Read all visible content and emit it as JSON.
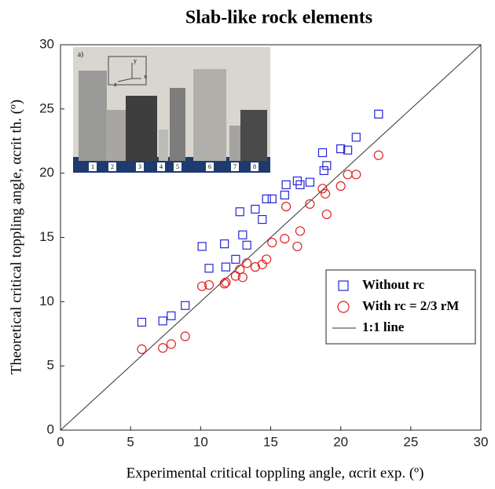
{
  "chart_data": {
    "type": "scatter",
    "title": "Slab-like rock elements",
    "x_label": "Experimental critical toppling angle, αcrit exp. (º)",
    "y_label": "Theoretical critical toppling angle, αcrit th. (º)",
    "xlim": [
      0,
      30
    ],
    "ylim": [
      0,
      30
    ],
    "xticks": [
      0,
      5,
      10,
      15,
      20,
      25,
      30
    ],
    "yticks": [
      0,
      5,
      10,
      15,
      20,
      25,
      30
    ],
    "grid": false,
    "legend_position": "lower right",
    "series": [
      {
        "name": "Without rc",
        "color": "#2626d9",
        "marker": "square",
        "x": [
          5.8,
          7.3,
          7.9,
          8.9,
          10.1,
          10.6,
          11.7,
          11.8,
          12.5,
          12.8,
          13.0,
          13.3,
          13.9,
          14.4,
          14.7,
          15.1,
          16.0,
          16.1,
          16.9,
          17.1,
          17.8,
          18.7,
          18.8,
          19.0,
          20.0,
          20.5,
          21.1,
          22.7
        ],
        "values": [
          8.4,
          8.5,
          8.9,
          9.7,
          14.3,
          12.6,
          14.5,
          12.7,
          13.3,
          17.0,
          15.2,
          14.4,
          17.2,
          16.4,
          18.0,
          18.0,
          18.3,
          19.1,
          19.4,
          19.1,
          19.3,
          21.6,
          20.2,
          20.6,
          21.9,
          21.8,
          22.8,
          24.6
        ]
      },
      {
        "name": "With rc = 2/3 rM",
        "color": "#e02020",
        "marker": "circle",
        "x": [
          5.8,
          7.3,
          7.9,
          8.9,
          10.1,
          10.6,
          11.7,
          11.8,
          12.5,
          12.8,
          13.0,
          13.3,
          13.9,
          14.4,
          14.7,
          15.1,
          16.0,
          16.1,
          16.9,
          17.1,
          17.8,
          18.7,
          18.9,
          19.0,
          20.0,
          20.5,
          21.1,
          22.7
        ],
        "values": [
          6.3,
          6.4,
          6.7,
          7.3,
          11.2,
          11.3,
          11.4,
          11.5,
          12.0,
          12.5,
          11.9,
          13.0,
          12.7,
          12.9,
          13.3,
          14.6,
          14.9,
          17.4,
          14.3,
          15.5,
          17.6,
          18.8,
          18.4,
          16.8,
          19.0,
          19.9,
          19.9,
          21.4
        ]
      }
    ],
    "reference_line": {
      "name": "1:1 line",
      "color": "#333333",
      "x": [
        0,
        30
      ],
      "values": [
        0,
        30
      ]
    },
    "inset": {
      "label": "a)",
      "axes": [
        "y",
        "x",
        "z"
      ],
      "numbers": [
        "1",
        "2",
        "3",
        "4",
        "5",
        "6",
        "7",
        "8"
      ]
    }
  }
}
